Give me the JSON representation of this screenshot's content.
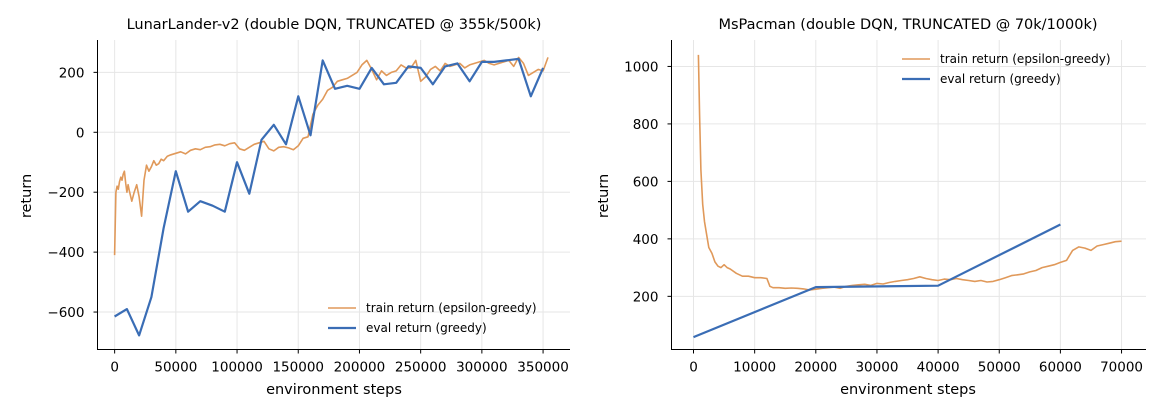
{
  "chart_data": [
    {
      "type": "line",
      "title": "LunarLander-v2 (double DQN, TRUNCATED @ 355k/500k)",
      "xlabel": "environment steps",
      "ylabel": "return",
      "xlim": [
        -14000,
        372000
      ],
      "ylim": [
        -725,
        308
      ],
      "xticks": [
        0,
        50000,
        100000,
        150000,
        200000,
        250000,
        300000,
        350000
      ],
      "xtick_labels": [
        "0",
        "50000",
        "100000",
        "150000",
        "200000",
        "250000",
        "300000",
        "350000"
      ],
      "yticks": [
        -600,
        -400,
        -200,
        0,
        200
      ],
      "ytick_labels": [
        "−600",
        "−400",
        "−200",
        "0",
        "200"
      ],
      "grid": true,
      "legend_position": "lower-right",
      "colors": {
        "train": "#e0995a",
        "eval": "#3a6db5"
      },
      "series": [
        {
          "name": "train return (epsilon-greedy)",
          "x": [
            0,
            1000,
            2000,
            3000,
            4000,
            5000,
            6000,
            7000,
            8000,
            9000,
            10000,
            11000,
            12000,
            14000,
            16000,
            18000,
            20000,
            22000,
            24000,
            26000,
            28000,
            30000,
            32000,
            34000,
            36000,
            38000,
            40000,
            43000,
            46000,
            50000,
            54000,
            58000,
            62000,
            66000,
            70000,
            74000,
            78000,
            82000,
            86000,
            90000,
            94000,
            98000,
            102000,
            106000,
            110000,
            114000,
            118000,
            122000,
            126000,
            130000,
            134000,
            138000,
            142000,
            146000,
            150000,
            154000,
            158000,
            162000,
            166000,
            170000,
            174000,
            178000,
            182000,
            186000,
            190000,
            194000,
            198000,
            202000,
            206000,
            210000,
            214000,
            218000,
            222000,
            226000,
            230000,
            234000,
            238000,
            242000,
            246000,
            250000,
            254000,
            258000,
            262000,
            266000,
            270000,
            274000,
            278000,
            282000,
            286000,
            290000,
            294000,
            298000,
            302000,
            306000,
            310000,
            314000,
            318000,
            322000,
            326000,
            330000,
            334000,
            338000,
            342000,
            346000,
            350000,
            354000
          ],
          "y": [
            -410,
            -200,
            -180,
            -190,
            -165,
            -150,
            -160,
            -140,
            -130,
            -170,
            -200,
            -175,
            -195,
            -230,
            -200,
            -175,
            -215,
            -280,
            -160,
            -110,
            -130,
            -115,
            -95,
            -110,
            -105,
            -90,
            -95,
            -80,
            -75,
            -70,
            -65,
            -72,
            -60,
            -55,
            -58,
            -50,
            -48,
            -42,
            -40,
            -45,
            -38,
            -35,
            -55,
            -60,
            -50,
            -40,
            -35,
            -30,
            -55,
            -62,
            -50,
            -48,
            -52,
            -58,
            -45,
            -20,
            -15,
            60,
            90,
            110,
            140,
            150,
            170,
            175,
            180,
            190,
            200,
            225,
            240,
            210,
            175,
            205,
            190,
            200,
            205,
            225,
            215,
            215,
            240,
            170,
            185,
            210,
            220,
            205,
            230,
            220,
            225,
            230,
            215,
            225,
            230,
            235,
            240,
            230,
            225,
            230,
            235,
            240,
            220,
            250,
            230,
            190,
            200,
            210,
            205,
            250
          ]
        },
        {
          "name": "eval return (greedy)",
          "x": [
            0,
            10000,
            20000,
            30000,
            40000,
            50000,
            60000,
            70000,
            80000,
            90000,
            100000,
            110000,
            120000,
            130000,
            140000,
            150000,
            160000,
            170000,
            180000,
            190000,
            200000,
            210000,
            220000,
            230000,
            240000,
            250000,
            260000,
            270000,
            280000,
            290000,
            300000,
            310000,
            320000,
            330000,
            340000,
            350000
          ],
          "y": [
            -615,
            -590,
            -678,
            -550,
            -320,
            -130,
            -265,
            -230,
            -245,
            -265,
            -100,
            -205,
            -25,
            25,
            -40,
            120,
            -10,
            240,
            145,
            155,
            145,
            215,
            160,
            165,
            220,
            215,
            160,
            220,
            230,
            170,
            235,
            235,
            240,
            245,
            120,
            215
          ]
        }
      ]
    },
    {
      "type": "line",
      "title": "MsPacman (double DQN, TRUNCATED @ 70k/1000k)",
      "xlabel": "environment steps",
      "ylabel": "return",
      "xlim": [
        -3600,
        74000
      ],
      "ylim": [
        15,
        1092
      ],
      "xticks": [
        0,
        10000,
        20000,
        30000,
        40000,
        50000,
        60000,
        70000
      ],
      "xtick_labels": [
        "0",
        "10000",
        "20000",
        "30000",
        "40000",
        "50000",
        "60000",
        "70000"
      ],
      "yticks": [
        200,
        400,
        600,
        800,
        1000
      ],
      "ytick_labels": [
        "200",
        "400",
        "600",
        "800",
        "1000"
      ],
      "grid": true,
      "legend_position": "upper-right",
      "colors": {
        "train": "#e0995a",
        "eval": "#3a6db5"
      },
      "series": [
        {
          "name": "train return (epsilon-greedy)",
          "x": [
            800,
            1000,
            1200,
            1500,
            1800,
            2100,
            2500,
            3000,
            3500,
            4000,
            4500,
            5000,
            5500,
            6000,
            7000,
            8000,
            9000,
            10000,
            11000,
            12000,
            12500,
            13000,
            14000,
            15000,
            16000,
            17000,
            18000,
            19000,
            20000,
            21000,
            22000,
            23000,
            24000,
            25000,
            26000,
            27000,
            28000,
            29000,
            30000,
            31000,
            32000,
            33000,
            34000,
            35000,
            36000,
            37000,
            38000,
            39000,
            40000,
            41000,
            42000,
            43000,
            44000,
            45000,
            46000,
            47000,
            48000,
            49000,
            50000,
            51000,
            52000,
            53000,
            54000,
            55000,
            56000,
            57000,
            58000,
            59000,
            60000,
            61000,
            62000,
            63000,
            64000,
            65000,
            66000,
            67000,
            68000,
            69000,
            70000
          ],
          "y": [
            1040,
            830,
            640,
            520,
            460,
            420,
            370,
            350,
            320,
            305,
            300,
            310,
            300,
            295,
            280,
            270,
            270,
            265,
            265,
            262,
            235,
            230,
            230,
            228,
            229,
            228,
            226,
            222,
            225,
            228,
            230,
            232,
            228,
            235,
            238,
            240,
            242,
            238,
            245,
            243,
            248,
            252,
            255,
            258,
            262,
            268,
            262,
            258,
            255,
            260,
            258,
            262,
            258,
            255,
            252,
            255,
            250,
            252,
            258,
            265,
            272,
            275,
            278,
            285,
            290,
            300,
            305,
            310,
            318,
            325,
            360,
            372,
            368,
            360,
            375,
            380,
            385,
            390,
            392
          ]
        },
        {
          "name": "eval return (greedy)",
          "x": [
            0,
            20000,
            40000,
            60000
          ],
          "y": [
            58,
            232,
            237,
            450
          ]
        }
      ]
    }
  ]
}
